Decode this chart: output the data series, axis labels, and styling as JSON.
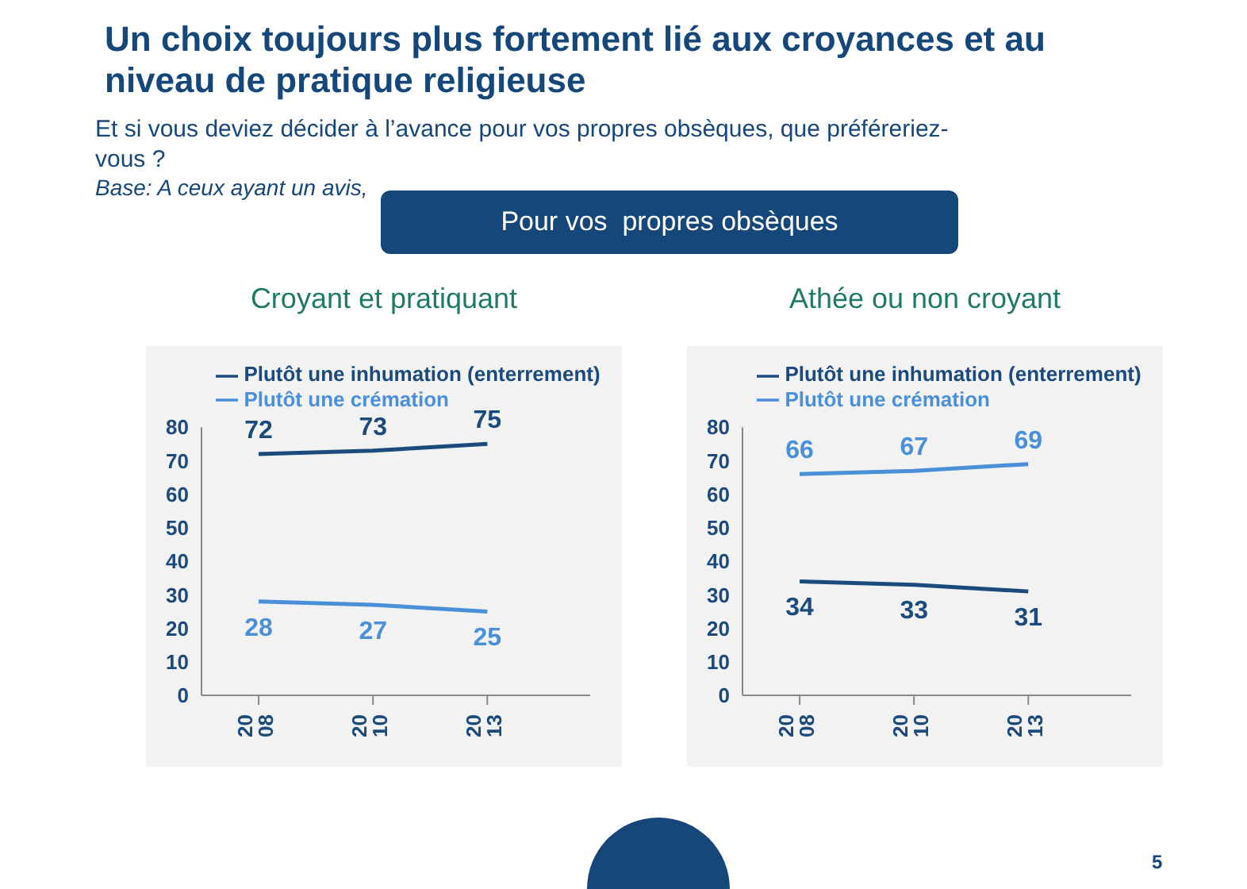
{
  "chart_data": [
    {
      "type": "line",
      "title": "Croyant et pratiquant",
      "annotations": [
        "Un choix toujours plus fortement lié aux croyances et au niveau de pratique religieuse",
        "Et si vous deviez décider à l’avance pour vos propres obsèques, que préféreriez-vous ?",
        "Base: A ceux ayant un avis,",
        "Pour vos  propres obsèques",
        "5"
      ],
      "categories": [
        "2008",
        "2010",
        "2013"
      ],
      "series": [
        {
          "name": "Plutôt une inhumation (enterrement)",
          "color": "#1b4a7c",
          "values": [
            72,
            73,
            75
          ]
        },
        {
          "name": "Plutôt une crémation",
          "color": "#4a90d9",
          "values": [
            28,
            27,
            25
          ]
        }
      ],
      "ylim": [
        0,
        80
      ],
      "yticks": [
        0,
        10,
        20,
        30,
        40,
        50,
        60,
        70,
        80
      ],
      "grid": false,
      "legend": "top",
      "data_labels": true,
      "marker": "none",
      "line_style": "solid"
    },
    {
      "type": "line",
      "title": "Athée ou non croyant",
      "categories": [
        "2008",
        "2010",
        "2013"
      ],
      "series": [
        {
          "name": "Plutôt une inhumation (enterrement)",
          "color": "#1b4a7c",
          "values": [
            34,
            33,
            31
          ]
        },
        {
          "name": "Plutôt une crémation",
          "color": "#4a90d9",
          "values": [
            66,
            67,
            69
          ]
        }
      ],
      "ylim": [
        0,
        80
      ],
      "yticks": [
        0,
        10,
        20,
        30,
        40,
        50,
        60,
        70,
        80
      ],
      "grid": false,
      "legend": "top",
      "data_labels": true,
      "marker": "none",
      "line_style": "solid"
    }
  ]
}
